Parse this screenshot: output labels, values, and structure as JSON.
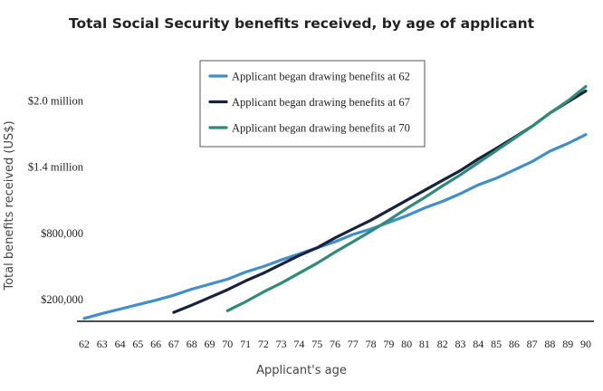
{
  "chart_data": {
    "type": "line",
    "title": "Total Social Security benefits received, by age of applicant",
    "xlabel": "Applicant's age",
    "ylabel": "Total benefits received (US$)",
    "xlim": [
      62,
      90
    ],
    "ylim": [
      0,
      2200000
    ],
    "y_ticks": [
      {
        "value": 200000,
        "label": "$200,000"
      },
      {
        "value": 800000,
        "label": "$800,000"
      },
      {
        "value": 1400000,
        "label": "$1.4 million"
      },
      {
        "value": 2000000,
        "label": "$2.0 million"
      }
    ],
    "x_ticks": [
      "62",
      "63",
      "64",
      "65",
      "66",
      "67",
      "68",
      "69",
      "70",
      "71",
      "72",
      "73",
      "74",
      "75",
      "76",
      "77",
      "78",
      "79",
      "80",
      "81",
      "82",
      "83",
      "84",
      "85",
      "86",
      "87",
      "88",
      "89",
      "90"
    ],
    "legend_position": "top-center",
    "grid": false,
    "series": [
      {
        "name": "Applicant began drawing benefits at 62",
        "color": "#3f8fcc",
        "x": [
          62,
          63,
          64,
          65,
          66,
          67,
          68,
          69,
          70,
          71,
          72,
          73,
          74,
          75,
          76,
          77,
          78,
          79,
          80,
          81,
          82,
          83,
          84,
          85,
          86,
          87,
          88,
          89,
          90
        ],
        "values": [
          30000,
          75000,
          115000,
          155000,
          195000,
          240000,
          295000,
          340000,
          385000,
          450000,
          500000,
          560000,
          615000,
          670000,
          725000,
          790000,
          840000,
          900000,
          960000,
          1030000,
          1090000,
          1160000,
          1240000,
          1300000,
          1375000,
          1450000,
          1545000,
          1615000,
          1695000
        ]
      },
      {
        "name": "Applicant began drawing benefits at 67",
        "color": "#17233d",
        "x": [
          67,
          68,
          69,
          70,
          71,
          72,
          73,
          74,
          75,
          76,
          77,
          78,
          79,
          80,
          81,
          82,
          83,
          84,
          85,
          86,
          87,
          88,
          89,
          90
        ],
        "values": [
          85000,
          150000,
          220000,
          290000,
          370000,
          440000,
          520000,
          600000,
          670000,
          760000,
          840000,
          920000,
          1010000,
          1100000,
          1190000,
          1280000,
          1370000,
          1475000,
          1570000,
          1670000,
          1770000,
          1890000,
          1990000,
          2090000
        ]
      },
      {
        "name": "Applicant began drawing benefits at 70",
        "color": "#2e8b78",
        "x": [
          70,
          71,
          72,
          73,
          74,
          75,
          76,
          77,
          78,
          79,
          80,
          81,
          82,
          83,
          84,
          85,
          86,
          87,
          88,
          89,
          90
        ],
        "values": [
          100000,
          180000,
          270000,
          350000,
          440000,
          530000,
          630000,
          725000,
          820000,
          920000,
          1025000,
          1125000,
          1230000,
          1330000,
          1440000,
          1550000,
          1660000,
          1770000,
          1890000,
          2000000,
          2130000
        ]
      }
    ]
  }
}
